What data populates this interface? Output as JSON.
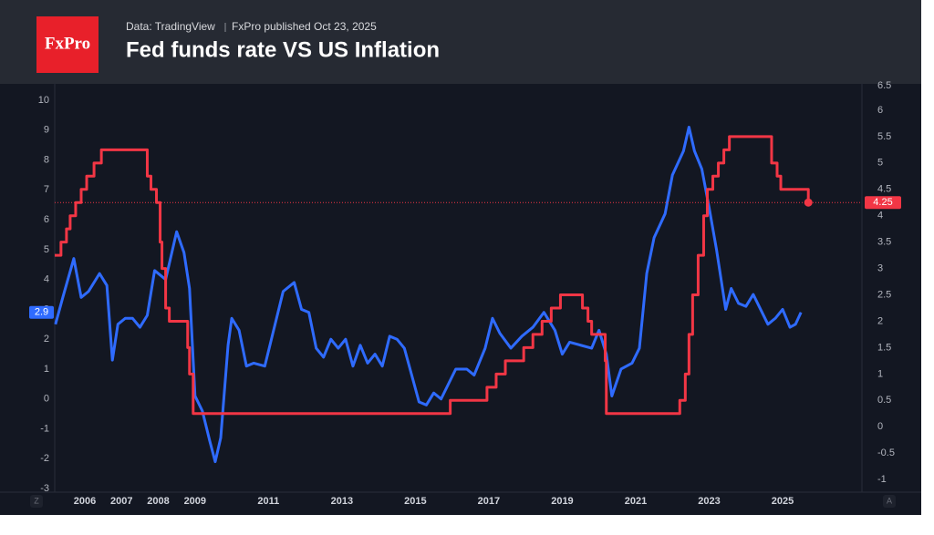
{
  "header": {
    "logo": "FxPro",
    "source": "Data: TradingView",
    "published": "FxPro published Oct 23,  2025"
  },
  "controls": [
    "Z",
    "A"
  ],
  "chart_data": {
    "type": "line",
    "title": "Fed funds rate VS US Inflation",
    "xlim": [
      2005.18,
      2027.16
    ],
    "xticks": [
      2006,
      2007,
      2008,
      2009,
      2011,
      2013,
      2015,
      2017,
      2019,
      2021,
      2023,
      2025
    ],
    "ylim": [
      -3.12,
      10.55
    ],
    "yticks": [
      -3,
      -2,
      -1,
      0,
      1,
      2,
      3,
      4,
      5,
      6,
      7,
      8,
      9,
      10
    ],
    "y2lim": [
      -1.24,
      6.5
    ],
    "y2ticks": [
      -1,
      -0.5,
      0,
      0.5,
      1,
      1.5,
      2,
      2.5,
      3,
      3.5,
      4,
      4.5,
      5,
      5.5,
      6,
      6.5
    ],
    "grid": false,
    "series": [
      {
        "color": "#2f6bff",
        "axis": "y",
        "x": [
          2005.2,
          2005.4,
          2005.7,
          2005.9,
          2006.1,
          2006.4,
          2006.6,
          2006.75,
          2006.9,
          2007.1,
          2007.3,
          2007.5,
          2007.7,
          2007.9,
          2008.2,
          2008.5,
          2008.7,
          2008.85,
          2009.0,
          2009.2,
          2009.4,
          2009.55,
          2009.7,
          2009.9,
          2010.0,
          2010.2,
          2010.4,
          2010.6,
          2010.9,
          2011.1,
          2011.4,
          2011.7,
          2011.9,
          2012.1,
          2012.3,
          2012.5,
          2012.7,
          2012.9,
          2013.1,
          2013.3,
          2013.5,
          2013.7,
          2013.9,
          2014.1,
          2014.3,
          2014.5,
          2014.7,
          2014.9,
          2015.1,
          2015.3,
          2015.5,
          2015.7,
          2015.9,
          2016.1,
          2016.4,
          2016.6,
          2016.9,
          2017.1,
          2017.3,
          2017.6,
          2017.9,
          2018.2,
          2018.5,
          2018.8,
          2019.0,
          2019.2,
          2019.5,
          2019.8,
          2020.0,
          2020.2,
          2020.35,
          2020.6,
          2020.9,
          2021.1,
          2021.3,
          2021.5,
          2021.8,
          2022.0,
          2022.3,
          2022.45,
          2022.6,
          2022.8,
          2023.0,
          2023.2,
          2023.45,
          2023.6,
          2023.8,
          2024.0,
          2024.2,
          2024.4,
          2024.6,
          2024.8,
          2025.0,
          2025.2,
          2025.35,
          2025.5
        ],
        "values": [
          2.5,
          3.4,
          4.7,
          3.4,
          3.6,
          4.2,
          3.8,
          1.3,
          2.5,
          2.7,
          2.7,
          2.4,
          2.8,
          4.3,
          4.0,
          5.6,
          4.9,
          3.7,
          0.1,
          -0.4,
          -1.4,
          -2.1,
          -1.3,
          1.8,
          2.7,
          2.3,
          1.1,
          1.2,
          1.1,
          2.1,
          3.6,
          3.9,
          3.0,
          2.9,
          1.7,
          1.4,
          2.0,
          1.7,
          2.0,
          1.1,
          1.8,
          1.2,
          1.5,
          1.1,
          2.1,
          2.0,
          1.7,
          0.8,
          -0.1,
          -0.2,
          0.2,
          0.0,
          0.5,
          1.0,
          1.0,
          0.8,
          1.7,
          2.7,
          2.2,
          1.7,
          2.1,
          2.4,
          2.9,
          2.3,
          1.5,
          1.9,
          1.8,
          1.7,
          2.3,
          1.5,
          0.1,
          1.0,
          1.2,
          1.7,
          4.2,
          5.4,
          6.2,
          7.5,
          8.3,
          9.1,
          8.3,
          7.7,
          6.4,
          5.0,
          3.0,
          3.7,
          3.2,
          3.1,
          3.5,
          3.0,
          2.5,
          2.7,
          3.0,
          2.4,
          2.5,
          2.9
        ]
      },
      {
        "color": "#f23645",
        "axis": "y2",
        "step": "after",
        "x": [
          2005.18,
          2005.35,
          2005.5,
          2005.6,
          2005.75,
          2005.9,
          2006.05,
          2006.25,
          2006.45,
          2007.7,
          2007.8,
          2007.95,
          2008.05,
          2008.1,
          2008.2,
          2008.3,
          2008.8,
          2008.85,
          2008.95,
          2015.95,
          2016.95,
          2017.2,
          2017.45,
          2017.95,
          2018.2,
          2018.45,
          2018.7,
          2018.95,
          2019.55,
          2019.7,
          2019.8,
          2020.17,
          2020.2,
          2022.2,
          2022.35,
          2022.45,
          2022.55,
          2022.7,
          2022.85,
          2022.95,
          2023.1,
          2023.25,
          2023.4,
          2023.55,
          2024.7,
          2024.85,
          2024.95,
          2025.7
        ],
        "values": [
          3.25,
          3.5,
          3.75,
          4.0,
          4.25,
          4.5,
          4.75,
          5.0,
          5.25,
          4.75,
          4.5,
          4.25,
          3.5,
          3.0,
          2.25,
          2.0,
          1.5,
          1.0,
          0.25,
          0.5,
          0.75,
          1.0,
          1.25,
          1.5,
          1.75,
          2.0,
          2.25,
          2.5,
          2.25,
          2.0,
          1.75,
          1.25,
          0.25,
          0.5,
          1.0,
          1.75,
          2.5,
          3.25,
          4.0,
          4.5,
          4.75,
          5.0,
          5.25,
          5.5,
          5.0,
          4.75,
          4.5,
          4.25
        ]
      }
    ]
  }
}
